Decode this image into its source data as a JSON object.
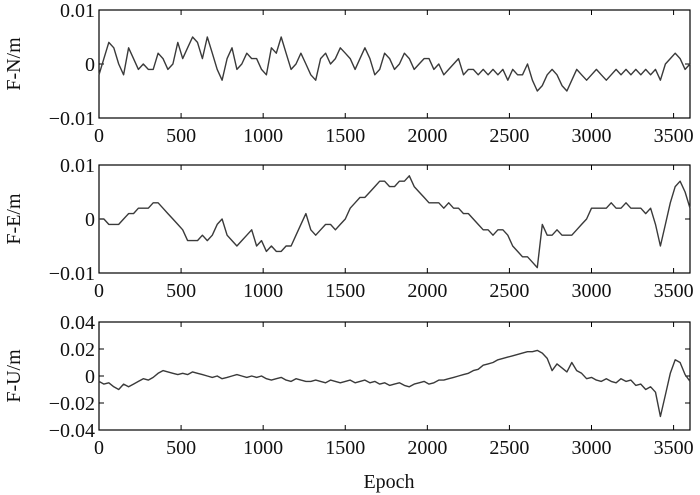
{
  "figure": {
    "xlabel": "Epoch"
  },
  "colors": {
    "line": "#3a3a3a",
    "axis": "#000000",
    "background": "#ffffff"
  },
  "chart_data": [
    {
      "type": "line",
      "ylabel": "F-N/m",
      "xlim": [
        0,
        3600
      ],
      "ylim": [
        -0.01,
        0.01
      ],
      "xticks": [
        0,
        500,
        1000,
        1500,
        2000,
        2500,
        3000,
        3500
      ],
      "xtick_labels": [
        "0",
        "500",
        "1000",
        "1500",
        "2000",
        "2500",
        "3000",
        "3500"
      ],
      "yticks": [
        -0.01,
        0,
        0.01
      ],
      "ytick_labels": [
        "−0.01",
        "0",
        "0.01"
      ],
      "grid": false,
      "series": [
        {
          "x": [
            0,
            30,
            60,
            90,
            120,
            150,
            180,
            210,
            240,
            270,
            300,
            330,
            360,
            390,
            420,
            450,
            480,
            510,
            540,
            570,
            600,
            630,
            660,
            690,
            720,
            750,
            780,
            810,
            840,
            870,
            900,
            930,
            960,
            990,
            1020,
            1050,
            1080,
            1110,
            1140,
            1170,
            1200,
            1230,
            1260,
            1290,
            1320,
            1350,
            1380,
            1410,
            1440,
            1470,
            1500,
            1530,
            1560,
            1590,
            1620,
            1650,
            1680,
            1710,
            1740,
            1770,
            1800,
            1830,
            1860,
            1890,
            1920,
            1950,
            1980,
            2010,
            2040,
            2070,
            2100,
            2130,
            2160,
            2190,
            2220,
            2250,
            2280,
            2310,
            2340,
            2370,
            2400,
            2430,
            2460,
            2490,
            2520,
            2550,
            2580,
            2610,
            2640,
            2670,
            2700,
            2730,
            2760,
            2790,
            2820,
            2850,
            2880,
            2910,
            2940,
            2970,
            3000,
            3030,
            3060,
            3090,
            3120,
            3150,
            3180,
            3210,
            3240,
            3270,
            3300,
            3330,
            3360,
            3390,
            3420,
            3450,
            3480,
            3510,
            3540,
            3570,
            3600
          ],
          "y": [
            -0.002,
            0.001,
            0.004,
            0.003,
            0.0,
            -0.002,
            0.003,
            0.001,
            -0.001,
            0.0,
            -0.001,
            -0.001,
            0.002,
            0.001,
            -0.001,
            0.0,
            0.004,
            0.001,
            0.003,
            0.005,
            0.004,
            0.001,
            0.005,
            0.002,
            -0.001,
            -0.003,
            0.001,
            0.003,
            -0.001,
            0.0,
            0.002,
            0.001,
            0.001,
            -0.001,
            -0.002,
            0.003,
            0.002,
            0.005,
            0.002,
            -0.001,
            0.0,
            0.002,
            0.0,
            -0.002,
            -0.003,
            0.001,
            0.002,
            0.0,
            0.001,
            0.003,
            0.002,
            0.001,
            -0.001,
            0.001,
            0.003,
            0.001,
            -0.002,
            -0.001,
            0.002,
            0.001,
            -0.001,
            0.0,
            0.002,
            0.001,
            -0.001,
            0.0,
            0.001,
            0.001,
            -0.001,
            0.0,
            -0.002,
            -0.001,
            0.0,
            0.001,
            -0.002,
            -0.001,
            -0.001,
            -0.002,
            -0.001,
            -0.002,
            -0.001,
            -0.002,
            -0.001,
            -0.003,
            -0.001,
            -0.002,
            -0.002,
            0.0,
            -0.003,
            -0.005,
            -0.004,
            -0.002,
            -0.001,
            -0.002,
            -0.004,
            -0.005,
            -0.003,
            -0.001,
            -0.002,
            -0.003,
            -0.002,
            -0.001,
            -0.002,
            -0.003,
            -0.002,
            -0.001,
            -0.002,
            -0.001,
            -0.002,
            -0.001,
            -0.002,
            -0.001,
            -0.002,
            -0.001,
            -0.003,
            0.0,
            0.001,
            0.002,
            0.001,
            -0.001,
            0.0
          ]
        }
      ]
    },
    {
      "type": "line",
      "ylabel": "F-E/m",
      "xlim": [
        0,
        3600
      ],
      "ylim": [
        -0.01,
        0.01
      ],
      "xticks": [
        0,
        500,
        1000,
        1500,
        2000,
        2500,
        3000,
        3500
      ],
      "xtick_labels": [
        "0",
        "500",
        "1000",
        "1500",
        "2000",
        "2500",
        "3000",
        "3500"
      ],
      "yticks": [
        -0.01,
        0,
        0.01
      ],
      "ytick_labels": [
        "−0.01",
        "0",
        "0.01"
      ],
      "grid": false,
      "series": [
        {
          "x": [
            0,
            30,
            60,
            90,
            120,
            150,
            180,
            210,
            240,
            270,
            300,
            330,
            360,
            390,
            420,
            450,
            480,
            510,
            540,
            570,
            600,
            630,
            660,
            690,
            720,
            750,
            780,
            810,
            840,
            870,
            900,
            930,
            960,
            990,
            1020,
            1050,
            1080,
            1110,
            1140,
            1170,
            1200,
            1230,
            1260,
            1290,
            1320,
            1350,
            1380,
            1410,
            1440,
            1470,
            1500,
            1530,
            1560,
            1590,
            1620,
            1650,
            1680,
            1710,
            1740,
            1770,
            1800,
            1830,
            1860,
            1890,
            1920,
            1950,
            1980,
            2010,
            2040,
            2070,
            2100,
            2130,
            2160,
            2190,
            2220,
            2250,
            2280,
            2310,
            2340,
            2370,
            2400,
            2430,
            2460,
            2490,
            2520,
            2550,
            2580,
            2610,
            2640,
            2670,
            2700,
            2730,
            2760,
            2790,
            2820,
            2850,
            2880,
            2910,
            2940,
            2970,
            3000,
            3030,
            3060,
            3090,
            3120,
            3150,
            3180,
            3210,
            3240,
            3270,
            3300,
            3330,
            3360,
            3390,
            3420,
            3450,
            3480,
            3510,
            3540,
            3570,
            3600
          ],
          "y": [
            0.0,
            0.0,
            -0.001,
            -0.001,
            -0.001,
            0.0,
            0.001,
            0.001,
            0.002,
            0.002,
            0.002,
            0.003,
            0.003,
            0.002,
            0.001,
            0.0,
            -0.001,
            -0.002,
            -0.004,
            -0.004,
            -0.004,
            -0.003,
            -0.004,
            -0.003,
            -0.001,
            0.0,
            -0.003,
            -0.004,
            -0.005,
            -0.004,
            -0.003,
            -0.002,
            -0.005,
            -0.004,
            -0.006,
            -0.005,
            -0.006,
            -0.006,
            -0.005,
            -0.005,
            -0.003,
            -0.001,
            0.001,
            -0.002,
            -0.003,
            -0.002,
            -0.001,
            -0.001,
            -0.002,
            -0.001,
            0.0,
            0.002,
            0.003,
            0.004,
            0.004,
            0.005,
            0.006,
            0.007,
            0.007,
            0.006,
            0.006,
            0.007,
            0.007,
            0.008,
            0.006,
            0.005,
            0.004,
            0.003,
            0.003,
            0.003,
            0.002,
            0.003,
            0.002,
            0.002,
            0.001,
            0.001,
            0.0,
            -0.001,
            -0.002,
            -0.002,
            -0.003,
            -0.002,
            -0.002,
            -0.003,
            -0.005,
            -0.006,
            -0.007,
            -0.007,
            -0.008,
            -0.009,
            -0.001,
            -0.003,
            -0.003,
            -0.002,
            -0.003,
            -0.003,
            -0.003,
            -0.002,
            -0.001,
            0.0,
            0.002,
            0.002,
            0.002,
            0.002,
            0.003,
            0.002,
            0.002,
            0.003,
            0.002,
            0.002,
            0.002,
            0.001,
            0.002,
            -0.001,
            -0.005,
            -0.001,
            0.003,
            0.006,
            0.007,
            0.005,
            0.002
          ]
        }
      ]
    },
    {
      "type": "line",
      "ylabel": "F-U/m",
      "xlim": [
        0,
        3600
      ],
      "ylim": [
        -0.04,
        0.04
      ],
      "xticks": [
        0,
        500,
        1000,
        1500,
        2000,
        2500,
        3000,
        3500
      ],
      "xtick_labels": [
        "0",
        "500",
        "1000",
        "1500",
        "2000",
        "2500",
        "3000",
        "3500"
      ],
      "yticks": [
        -0.04,
        -0.02,
        0,
        0.02,
        0.04
      ],
      "ytick_labels": [
        "−0.04",
        "−0.02",
        "0",
        "0.02",
        "0.04"
      ],
      "grid": false,
      "series": [
        {
          "x": [
            0,
            30,
            60,
            90,
            120,
            150,
            180,
            210,
            240,
            270,
            300,
            330,
            360,
            390,
            420,
            450,
            480,
            510,
            540,
            570,
            600,
            630,
            660,
            690,
            720,
            750,
            780,
            810,
            840,
            870,
            900,
            930,
            960,
            990,
            1020,
            1050,
            1080,
            1110,
            1140,
            1170,
            1200,
            1230,
            1260,
            1290,
            1320,
            1350,
            1380,
            1410,
            1440,
            1470,
            1500,
            1530,
            1560,
            1590,
            1620,
            1650,
            1680,
            1710,
            1740,
            1770,
            1800,
            1830,
            1860,
            1890,
            1920,
            1950,
            1980,
            2010,
            2040,
            2070,
            2100,
            2130,
            2160,
            2190,
            2220,
            2250,
            2280,
            2310,
            2340,
            2370,
            2400,
            2430,
            2460,
            2490,
            2520,
            2550,
            2580,
            2610,
            2640,
            2670,
            2700,
            2730,
            2760,
            2790,
            2820,
            2850,
            2880,
            2910,
            2940,
            2970,
            3000,
            3030,
            3060,
            3090,
            3120,
            3150,
            3180,
            3210,
            3240,
            3270,
            3300,
            3330,
            3360,
            3390,
            3420,
            3450,
            3480,
            3510,
            3540,
            3570,
            3600
          ],
          "y": [
            -0.004,
            -0.006,
            -0.005,
            -0.008,
            -0.01,
            -0.006,
            -0.008,
            -0.006,
            -0.004,
            -0.002,
            -0.003,
            -0.001,
            0.002,
            0.004,
            0.003,
            0.002,
            0.001,
            0.002,
            0.001,
            0.003,
            0.002,
            0.001,
            0.0,
            -0.001,
            0.0,
            -0.002,
            -0.001,
            0.0,
            0.001,
            0.0,
            -0.001,
            0.0,
            -0.001,
            0.0,
            -0.002,
            -0.003,
            -0.002,
            -0.001,
            -0.003,
            -0.004,
            -0.002,
            -0.003,
            -0.004,
            -0.004,
            -0.003,
            -0.004,
            -0.005,
            -0.003,
            -0.004,
            -0.005,
            -0.004,
            -0.003,
            -0.005,
            -0.004,
            -0.003,
            -0.005,
            -0.004,
            -0.006,
            -0.005,
            -0.007,
            -0.006,
            -0.005,
            -0.007,
            -0.008,
            -0.006,
            -0.005,
            -0.004,
            -0.006,
            -0.005,
            -0.003,
            -0.003,
            -0.002,
            -0.001,
            0.0,
            0.001,
            0.002,
            0.004,
            0.005,
            0.008,
            0.009,
            0.01,
            0.012,
            0.013,
            0.014,
            0.015,
            0.016,
            0.017,
            0.018,
            0.018,
            0.019,
            0.017,
            0.013,
            0.004,
            0.009,
            0.006,
            0.003,
            0.01,
            0.004,
            0.002,
            -0.002,
            -0.001,
            -0.003,
            -0.004,
            -0.002,
            -0.004,
            -0.005,
            -0.002,
            -0.004,
            -0.003,
            -0.007,
            -0.006,
            -0.01,
            -0.008,
            -0.012,
            -0.03,
            -0.014,
            0.002,
            0.012,
            0.01,
            0.001,
            -0.004
          ]
        }
      ]
    }
  ]
}
